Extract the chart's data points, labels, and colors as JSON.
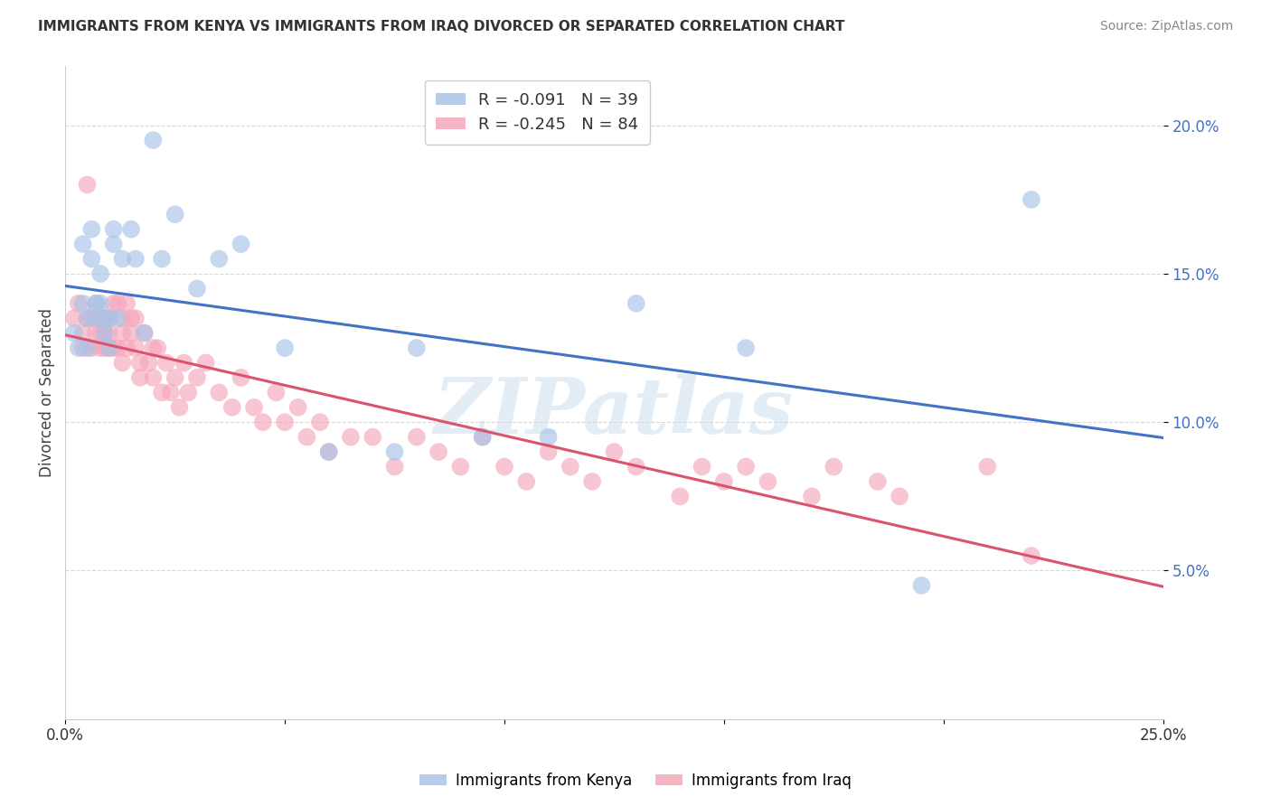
{
  "title": "IMMIGRANTS FROM KENYA VS IMMIGRANTS FROM IRAQ DIVORCED OR SEPARATED CORRELATION CHART",
  "source": "Source: ZipAtlas.com",
  "ylabel": "Divorced or Separated",
  "watermark": "ZIPatlas",
  "xlim": [
    0.0,
    0.25
  ],
  "ylim": [
    0.0,
    0.22
  ],
  "yticks": [
    0.05,
    0.1,
    0.15,
    0.2
  ],
  "R_kenya": -0.091,
  "N_kenya": 39,
  "R_iraq": -0.245,
  "N_iraq": 84,
  "color_kenya": "#a8c4e8",
  "color_iraq": "#f5a8bb",
  "line_color_kenya": "#4472c4",
  "line_color_iraq": "#d9546e",
  "background_color": "#ffffff",
  "grid_color": "#d8d8d8",
  "kenya_x": [
    0.002,
    0.003,
    0.004,
    0.004,
    0.005,
    0.005,
    0.006,
    0.006,
    0.007,
    0.007,
    0.008,
    0.008,
    0.009,
    0.009,
    0.01,
    0.01,
    0.011,
    0.011,
    0.012,
    0.013,
    0.015,
    0.016,
    0.018,
    0.02,
    0.022,
    0.025,
    0.03,
    0.035,
    0.04,
    0.05,
    0.06,
    0.075,
    0.08,
    0.095,
    0.11,
    0.13,
    0.155,
    0.195,
    0.22
  ],
  "kenya_y": [
    0.13,
    0.125,
    0.14,
    0.16,
    0.135,
    0.125,
    0.165,
    0.155,
    0.14,
    0.135,
    0.15,
    0.14,
    0.135,
    0.13,
    0.135,
    0.125,
    0.165,
    0.16,
    0.135,
    0.155,
    0.165,
    0.155,
    0.13,
    0.195,
    0.155,
    0.17,
    0.145,
    0.155,
    0.16,
    0.125,
    0.09,
    0.09,
    0.125,
    0.095,
    0.095,
    0.14,
    0.125,
    0.045,
    0.175
  ],
  "iraq_x": [
    0.002,
    0.003,
    0.004,
    0.004,
    0.005,
    0.005,
    0.006,
    0.006,
    0.007,
    0.007,
    0.008,
    0.008,
    0.008,
    0.009,
    0.009,
    0.009,
    0.01,
    0.01,
    0.01,
    0.011,
    0.011,
    0.012,
    0.012,
    0.013,
    0.013,
    0.013,
    0.014,
    0.014,
    0.015,
    0.015,
    0.016,
    0.016,
    0.017,
    0.017,
    0.018,
    0.019,
    0.02,
    0.02,
    0.021,
    0.022,
    0.023,
    0.024,
    0.025,
    0.026,
    0.027,
    0.028,
    0.03,
    0.032,
    0.035,
    0.038,
    0.04,
    0.043,
    0.045,
    0.048,
    0.05,
    0.053,
    0.055,
    0.058,
    0.06,
    0.065,
    0.07,
    0.075,
    0.08,
    0.085,
    0.09,
    0.095,
    0.1,
    0.105,
    0.11,
    0.115,
    0.12,
    0.125,
    0.13,
    0.14,
    0.145,
    0.15,
    0.155,
    0.16,
    0.17,
    0.175,
    0.185,
    0.19,
    0.21,
    0.22
  ],
  "iraq_y": [
    0.135,
    0.14,
    0.125,
    0.13,
    0.18,
    0.135,
    0.135,
    0.125,
    0.14,
    0.13,
    0.135,
    0.13,
    0.125,
    0.135,
    0.13,
    0.125,
    0.135,
    0.13,
    0.125,
    0.14,
    0.125,
    0.14,
    0.125,
    0.135,
    0.13,
    0.12,
    0.14,
    0.125,
    0.135,
    0.13,
    0.135,
    0.125,
    0.12,
    0.115,
    0.13,
    0.12,
    0.125,
    0.115,
    0.125,
    0.11,
    0.12,
    0.11,
    0.115,
    0.105,
    0.12,
    0.11,
    0.115,
    0.12,
    0.11,
    0.105,
    0.115,
    0.105,
    0.1,
    0.11,
    0.1,
    0.105,
    0.095,
    0.1,
    0.09,
    0.095,
    0.095,
    0.085,
    0.095,
    0.09,
    0.085,
    0.095,
    0.085,
    0.08,
    0.09,
    0.085,
    0.08,
    0.09,
    0.085,
    0.075,
    0.085,
    0.08,
    0.085,
    0.08,
    0.075,
    0.085,
    0.08,
    0.075,
    0.085,
    0.055
  ]
}
